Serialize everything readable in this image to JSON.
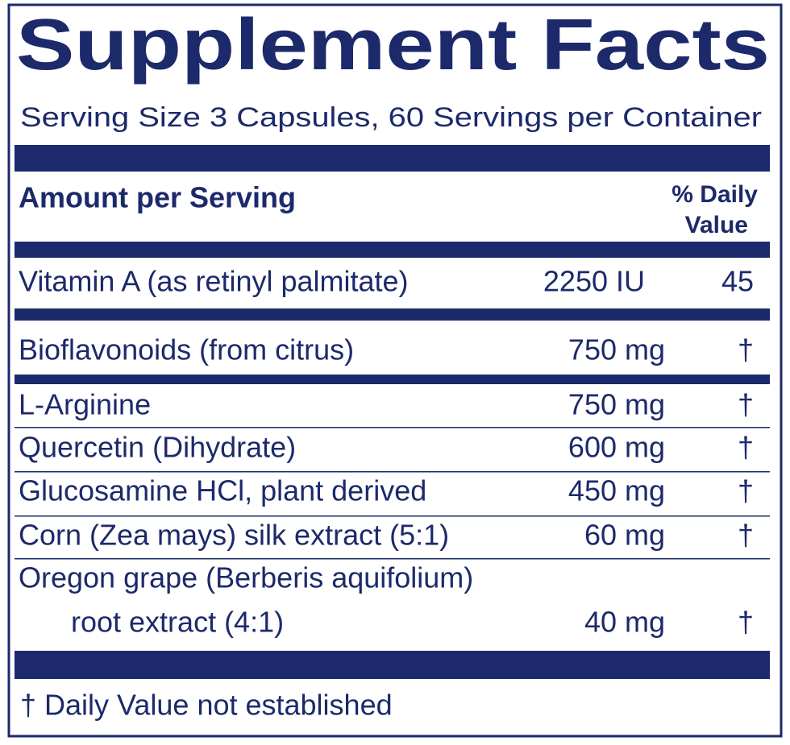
{
  "title": "Supplement Facts",
  "serving": "Serving Size 3 Capsules, 60 Servings per Container",
  "header": {
    "amount": "Amount per Serving",
    "daily_value": [
      "% Daily",
      "Value"
    ]
  },
  "rows": [
    {
      "lines": [
        "Vitamin A (as retinyl palmitate)"
      ],
      "amount": "2250 IU",
      "dv": "45"
    },
    {
      "lines": [
        "Bioflavonoids (from citrus)"
      ],
      "amount": "750 mg",
      "dv": "†"
    },
    {
      "lines": [
        "L-Arginine"
      ],
      "amount": "750 mg",
      "dv": "†"
    },
    {
      "lines": [
        "Quercetin (Dihydrate)"
      ],
      "amount": "600 mg",
      "dv": "†"
    },
    {
      "lines": [
        "Glucosamine HCl, plant derived"
      ],
      "amount": "450 mg",
      "dv": "†"
    },
    {
      "lines": [
        "Corn (Zea mays) silk extract (5:1)"
      ],
      "amount": "60 mg",
      "dv": "†"
    },
    {
      "lines": [
        "Oregon grape (Berberis aquifolium)",
        "root extract (4:1)"
      ],
      "amount": "40 mg",
      "dv": "†"
    }
  ],
  "footnote": "† Daily Value not established"
}
